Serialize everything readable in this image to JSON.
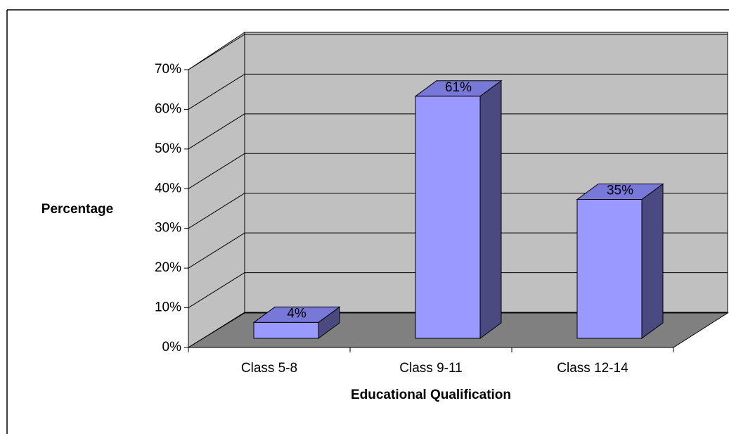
{
  "chart_data": {
    "type": "bar3d",
    "categories": [
      "Class 5-8",
      "Class 9-11",
      "Class 12-14"
    ],
    "values": [
      4,
      61,
      35
    ],
    "value_labels": [
      "4%",
      "61%",
      "35%"
    ],
    "color": "#9999ff",
    "ylim": [
      0,
      70
    ],
    "yticks": [
      {
        "value": 0,
        "label": "0%"
      },
      {
        "value": 10,
        "label": "10%"
      },
      {
        "value": 20,
        "label": "20%"
      },
      {
        "value": 30,
        "label": "30%"
      },
      {
        "value": 40,
        "label": "40%"
      },
      {
        "value": 50,
        "label": "50%"
      },
      {
        "value": 60,
        "label": "60%"
      },
      {
        "value": 70,
        "label": "70%"
      }
    ],
    "grid": true,
    "ylabel": "Percentage",
    "xlabel": "Educational Qualification"
  }
}
